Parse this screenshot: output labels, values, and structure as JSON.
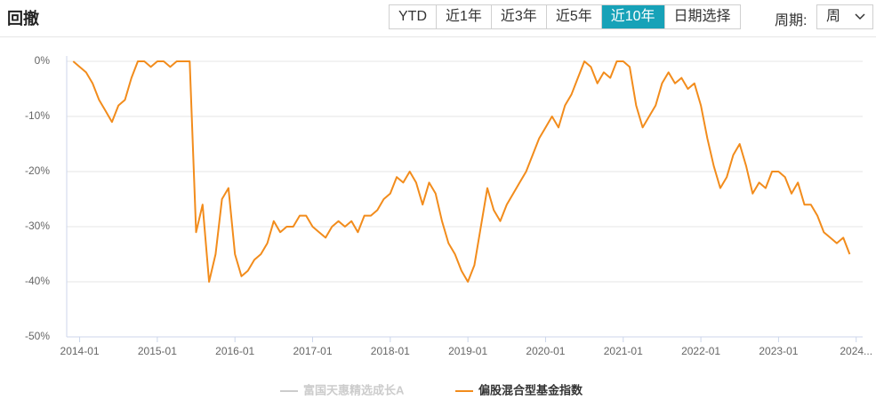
{
  "header": {
    "title": "回撤",
    "buttons": [
      "YTD",
      "近1年",
      "近3年",
      "近5年",
      "近10年",
      "日期选择"
    ],
    "active_button": 4,
    "period_label": "周期:",
    "period_value": "周"
  },
  "chart_data": {
    "type": "line",
    "x": [
      "2013-12",
      "2014-01",
      "2014-02",
      "2014-03",
      "2014-04",
      "2014-05",
      "2014-06",
      "2014-07",
      "2014-08",
      "2014-09",
      "2014-10",
      "2014-11",
      "2014-12",
      "2015-01",
      "2015-02",
      "2015-03",
      "2015-04",
      "2015-05",
      "2015-06",
      "2015-07",
      "2015-08",
      "2015-09",
      "2015-10",
      "2015-11",
      "2015-12",
      "2016-01",
      "2016-02",
      "2016-03",
      "2016-04",
      "2016-05",
      "2016-06",
      "2016-07",
      "2016-08",
      "2016-09",
      "2016-10",
      "2016-11",
      "2016-12",
      "2017-01",
      "2017-02",
      "2017-03",
      "2017-04",
      "2017-05",
      "2017-06",
      "2017-07",
      "2017-08",
      "2017-09",
      "2017-10",
      "2017-11",
      "2017-12",
      "2018-01",
      "2018-02",
      "2018-03",
      "2018-04",
      "2018-05",
      "2018-06",
      "2018-07",
      "2018-08",
      "2018-09",
      "2018-10",
      "2018-11",
      "2018-12",
      "2019-01",
      "2019-02",
      "2019-03",
      "2019-04",
      "2019-05",
      "2019-06",
      "2019-07",
      "2019-08",
      "2019-09",
      "2019-10",
      "2019-11",
      "2019-12",
      "2020-01",
      "2020-02",
      "2020-03",
      "2020-04",
      "2020-05",
      "2020-06",
      "2020-07",
      "2020-08",
      "2020-09",
      "2020-10",
      "2020-11",
      "2020-12",
      "2021-01",
      "2021-02",
      "2021-03",
      "2021-04",
      "2021-05",
      "2021-06",
      "2021-07",
      "2021-08",
      "2021-09",
      "2021-10",
      "2021-11",
      "2021-12",
      "2022-01",
      "2022-02",
      "2022-03",
      "2022-04",
      "2022-05",
      "2022-06",
      "2022-07",
      "2022-08",
      "2022-09",
      "2022-10",
      "2022-11",
      "2022-12",
      "2023-01",
      "2023-02",
      "2023-03",
      "2023-04",
      "2023-05",
      "2023-06",
      "2023-07",
      "2023-08",
      "2023-09",
      "2023-10",
      "2023-11",
      "2023-12"
    ],
    "series": [
      {
        "name": "富国天惠精选成长A",
        "color": "#cccccc",
        "visible": false
      },
      {
        "name": "偏股混合型基金指数",
        "color": "#f28c1c",
        "visible": true,
        "values": [
          0,
          -1,
          -2,
          -4,
          -7,
          -9,
          -11,
          -8,
          -7,
          -3,
          0,
          0,
          -1,
          0,
          0,
          -1,
          0,
          0,
          0,
          -31,
          -26,
          -40,
          -35,
          -25,
          -23,
          -35,
          -39,
          -38,
          -36,
          -35,
          -33,
          -29,
          -31,
          -30,
          -30,
          -28,
          -28,
          -30,
          -31,
          -32,
          -30,
          -29,
          -30,
          -29,
          -31,
          -28,
          -28,
          -27,
          -25,
          -24,
          -21,
          -22,
          -20,
          -22,
          -26,
          -22,
          -24,
          -29,
          -33,
          -35,
          -38,
          -40,
          -37,
          -30,
          -23,
          -27,
          -29,
          -26,
          -24,
          -22,
          -20,
          -17,
          -14,
          -12,
          -10,
          -12,
          -8,
          -6,
          -3,
          0,
          -1,
          -4,
          -2,
          -3,
          0,
          0,
          -1,
          -8,
          -12,
          -10,
          -8,
          -4,
          -2,
          -4,
          -3,
          -5,
          -4,
          -8,
          -14,
          -19,
          -23,
          -21,
          -17,
          -15,
          -19,
          -24,
          -22,
          -23,
          -20,
          -20,
          -21,
          -24,
          -22,
          -26,
          -26,
          -28,
          -31,
          -32,
          -33,
          -32,
          -35
        ]
      }
    ],
    "xlim": [
      "2013-11",
      "2024-02"
    ],
    "xticks": [
      "2014-01",
      "2015-01",
      "2016-01",
      "2017-01",
      "2018-01",
      "2019-01",
      "2020-01",
      "2021-01",
      "2022-01",
      "2023-01",
      {
        "value": "2024-01",
        "label": "2024..."
      }
    ],
    "ylim": [
      -50,
      0
    ],
    "yticks": [
      {
        "value": 0,
        "label": "0%"
      },
      {
        "value": -10,
        "label": "-10%"
      },
      {
        "value": -20,
        "label": "-20%"
      },
      {
        "value": -30,
        "label": "-30%"
      },
      {
        "value": -40,
        "label": "-40%"
      },
      {
        "value": -50,
        "label": "-50%"
      }
    ],
    "grid": true
  }
}
